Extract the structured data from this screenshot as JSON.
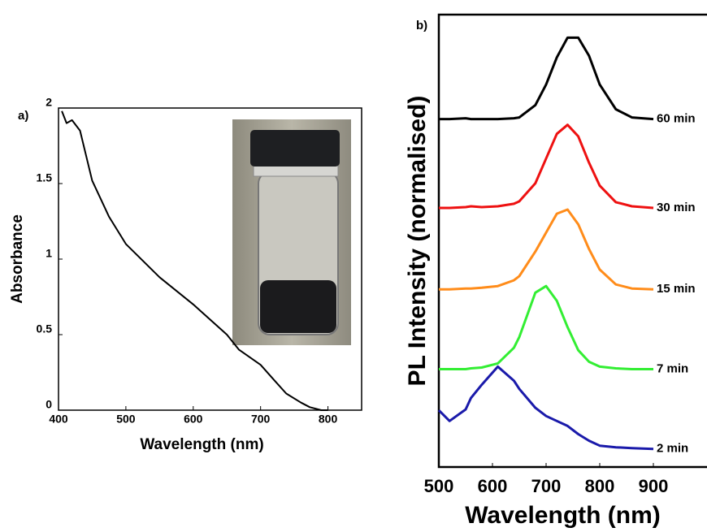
{
  "chart_data": [
    {
      "type": "line",
      "panel_label": "a)",
      "xlabel": "Wavelength (nm)",
      "ylabel": "Absorbance",
      "x": [
        405,
        412,
        420,
        432,
        450,
        475,
        500,
        550,
        600,
        650,
        668,
        700,
        720,
        738,
        760,
        773,
        790,
        800
      ],
      "series": [
        {
          "color": "#000000",
          "values": [
            1.98,
            1.9,
            1.92,
            1.85,
            1.52,
            1.28,
            1.1,
            0.88,
            0.7,
            0.5,
            0.4,
            0.3,
            0.2,
            0.11,
            0.05,
            0.02,
            0.0,
            0.0
          ]
        }
      ],
      "xlim": [
        400,
        850
      ],
      "ylim": [
        0,
        2
      ],
      "xticks": [
        400,
        500,
        600,
        700,
        800
      ],
      "yticks": [
        0,
        0.5,
        1,
        1.5,
        2
      ],
      "grid": false
    },
    {
      "type": "line",
      "panel_label": "b)",
      "xlabel": "Wavelength (nm)",
      "ylabel": "PL Intensity (normalised)",
      "x": [
        500,
        520,
        550,
        560,
        580,
        610,
        640,
        650,
        680,
        700,
        720,
        740,
        760,
        780,
        800,
        830,
        860,
        900
      ],
      "series": [
        {
          "name": "60 min",
          "color": "#000000",
          "values": [
            4.23,
            4.23,
            4.24,
            4.23,
            4.23,
            4.23,
            4.24,
            4.25,
            4.4,
            4.65,
            4.98,
            5.22,
            5.22,
            5.0,
            4.65,
            4.35,
            4.25,
            4.23
          ]
        },
        {
          "name": "30 min",
          "color": "#ee1111",
          "values": [
            3.15,
            3.15,
            3.16,
            3.17,
            3.16,
            3.17,
            3.2,
            3.23,
            3.45,
            3.75,
            4.05,
            4.16,
            4.02,
            3.7,
            3.42,
            3.22,
            3.17,
            3.15
          ]
        },
        {
          "name": "15 min",
          "color": "#ff8c1a",
          "values": [
            2.16,
            2.16,
            2.17,
            2.17,
            2.18,
            2.2,
            2.27,
            2.32,
            2.62,
            2.85,
            3.08,
            3.13,
            2.95,
            2.65,
            2.4,
            2.22,
            2.17,
            2.16
          ]
        },
        {
          "name": "7 min",
          "color": "#33ee33",
          "values": [
            1.19,
            1.19,
            1.19,
            1.2,
            1.21,
            1.26,
            1.45,
            1.58,
            2.12,
            2.2,
            2.02,
            1.7,
            1.42,
            1.28,
            1.22,
            1.2,
            1.19,
            1.19
          ]
        },
        {
          "name": "2 min",
          "color": "#1a1aaa",
          "values": [
            0.69,
            0.56,
            0.7,
            0.84,
            1.0,
            1.22,
            1.05,
            0.95,
            0.72,
            0.62,
            0.56,
            0.5,
            0.4,
            0.32,
            0.26,
            0.24,
            0.23,
            0.22
          ]
        }
      ],
      "xlim": [
        500,
        1000
      ],
      "ylim": [
        0,
        5.5
      ],
      "xticks": [
        500,
        600,
        700,
        800,
        900
      ],
      "grid": false
    }
  ]
}
